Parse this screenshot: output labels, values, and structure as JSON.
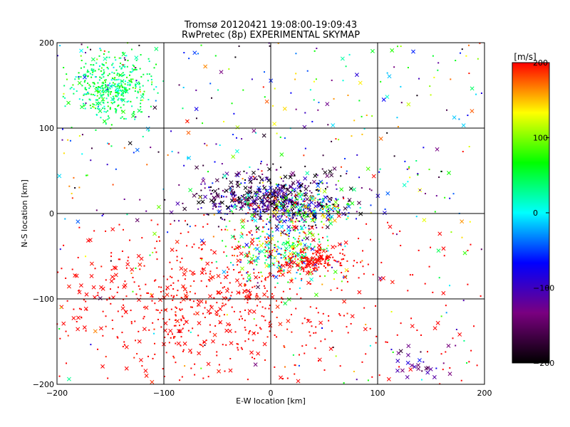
{
  "chart_data": {
    "type": "scatter",
    "title": "Tromsø 20120421 19:08:00-19:09:43",
    "subtitle": "RwPretec (8p) EXPERIMENTAL SKYMAP",
    "xlabel": "E-W location [km]",
    "ylabel": "N-S location [km]",
    "xlim": [
      -200,
      200
    ],
    "ylim": [
      -200,
      200
    ],
    "xticks": [
      -200,
      -100,
      0,
      100,
      200
    ],
    "yticks": [
      -200,
      -100,
      0,
      100,
      200
    ],
    "x_tick_labels": [
      "−200",
      "−100",
      "0",
      "100",
      "200"
    ],
    "y_tick_labels": [
      "−200",
      "−100",
      "0",
      "100",
      "200"
    ],
    "grid": true,
    "colorbar": {
      "label": "[m/s]",
      "range": [
        -200,
        200
      ],
      "ticks": [
        200,
        100,
        0,
        -100,
        -200
      ],
      "tick_labels": [
        "200",
        "100",
        "0",
        "−100",
        "−200"
      ],
      "colormap": [
        "#000000",
        "#7a0080",
        "#0000ff",
        "#00ffff",
        "#00ff00",
        "#ffff00",
        "#ff0000"
      ]
    },
    "markers": [
      "dot",
      "x"
    ],
    "clusters": [
      {
        "region": "north-west",
        "center": [
          -150,
          150
        ],
        "spread": [
          18,
          18
        ],
        "velocity_mean": 45,
        "velocity_spread": 25
      },
      {
        "region": "center",
        "center": [
          0,
          20
        ],
        "spread": [
          32,
          14
        ],
        "velocity_mean": -150,
        "velocity_spread": 50
      },
      {
        "region": "center-right",
        "center": [
          25,
          5
        ],
        "spread": [
          25,
          12
        ],
        "velocity_mean": 0,
        "velocity_spread": 150
      },
      {
        "region": "south-center",
        "center": [
          10,
          -45
        ],
        "spread": [
          25,
          18
        ],
        "velocity_mean": 50,
        "velocity_spread": 90
      },
      {
        "region": "south-east",
        "center": [
          40,
          -55
        ],
        "spread": [
          15,
          8
        ],
        "velocity_mean": 200,
        "velocity_spread": 5
      },
      {
        "region": "south",
        "center": [
          -60,
          -100
        ],
        "spread": [
          60,
          40
        ],
        "velocity_mean": 200,
        "velocity_spread": 5
      },
      {
        "region": "south-east-corner",
        "center": [
          140,
          -175
        ],
        "spread": [
          14,
          12
        ],
        "velocity_mean": -120,
        "velocity_spread": 30
      }
    ]
  },
  "colors": {
    "background": "#ffffff",
    "axis": "#000000",
    "grid": "#000000"
  }
}
